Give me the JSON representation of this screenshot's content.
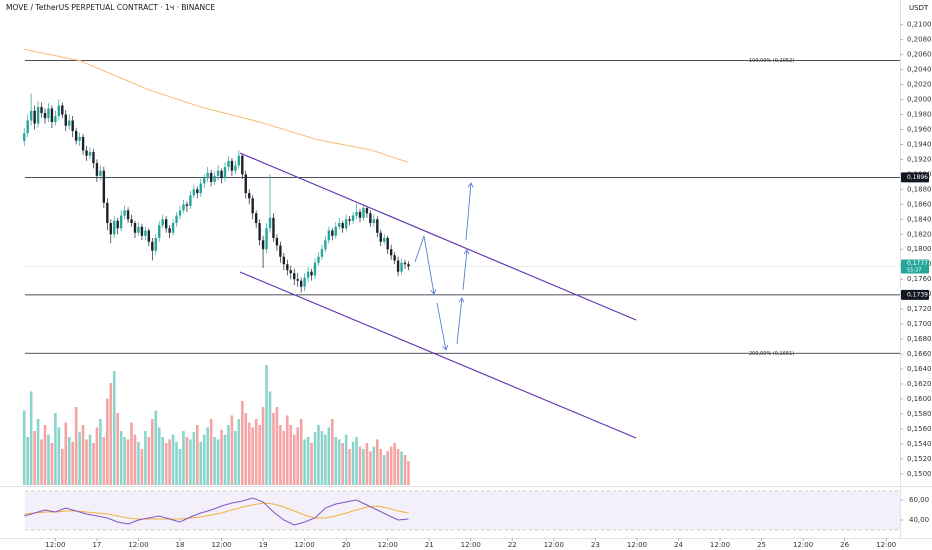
{
  "chart_data": {
    "type": "candlestick",
    "title": "MOVE / TetherUS PERPETUAL CONTRACT · 1ч · BINANCE",
    "y_unit": "USDT",
    "up_color": "#26a69a",
    "down_color": "#1e222d",
    "volume_up_color": "#8ad4cc",
    "volume_down_color": "#f5a3a3",
    "ma_color": "#f8bc7a",
    "rsi_color": "#7e57c2",
    "rsi_ma_color": "#f5b041",
    "xlim": [
      -4,
      256
    ],
    "xticks": [
      {
        "value": 12,
        "label": "12:00"
      },
      {
        "value": 24,
        "label": "17"
      },
      {
        "value": 36,
        "label": "12:00"
      },
      {
        "value": 48,
        "label": "18"
      },
      {
        "value": 60,
        "label": "12:00"
      },
      {
        "value": 72,
        "label": "19"
      },
      {
        "value": 84,
        "label": "12:00"
      },
      {
        "value": 96,
        "label": "20"
      },
      {
        "value": 108,
        "label": "12:00"
      },
      {
        "value": 120,
        "label": "21"
      },
      {
        "value": 132,
        "label": "12:00"
      },
      {
        "value": 144,
        "label": "22"
      },
      {
        "value": 156,
        "label": "12:00"
      },
      {
        "value": 168,
        "label": "23"
      },
      {
        "value": 180,
        "label": "12:00"
      },
      {
        "value": 192,
        "label": "24"
      },
      {
        "value": 204,
        "label": "12:00"
      },
      {
        "value": 216,
        "label": "25"
      },
      {
        "value": 228,
        "label": "12:00"
      },
      {
        "value": 240,
        "label": "26"
      },
      {
        "value": 252,
        "label": "12:00"
      }
    ],
    "ylim": [
      0.1485,
      0.2133
    ],
    "yticks": [
      {
        "value": 0.21,
        "label": "0,2100"
      },
      {
        "value": 0.208,
        "label": "0,2080"
      },
      {
        "value": 0.206,
        "label": "0,2060"
      },
      {
        "value": 0.204,
        "label": "0,2040"
      },
      {
        "value": 0.202,
        "label": "0,2020"
      },
      {
        "value": 0.2,
        "label": "0,2000"
      },
      {
        "value": 0.198,
        "label": "0,1980"
      },
      {
        "value": 0.196,
        "label": "0,1960"
      },
      {
        "value": 0.194,
        "label": "0,1940"
      },
      {
        "value": 0.192,
        "label": "0,1920"
      },
      {
        "value": 0.19,
        "label": "0,1900"
      },
      {
        "value": 0.188,
        "label": "0,1880"
      },
      {
        "value": 0.186,
        "label": "0,1860"
      },
      {
        "value": 0.184,
        "label": "0,1840"
      },
      {
        "value": 0.182,
        "label": "0,1820"
      },
      {
        "value": 0.18,
        "label": "0,1800"
      },
      {
        "value": 0.178,
        "label": "0,1780"
      },
      {
        "value": 0.176,
        "label": "0,1760"
      },
      {
        "value": 0.174,
        "label": "0,1740"
      },
      {
        "value": 0.172,
        "label": "0,1720"
      },
      {
        "value": 0.17,
        "label": "0,1700"
      },
      {
        "value": 0.168,
        "label": "0,1680"
      },
      {
        "value": 0.166,
        "label": "0,1660"
      },
      {
        "value": 0.164,
        "label": "0,1640"
      },
      {
        "value": 0.162,
        "label": "0,1620"
      },
      {
        "value": 0.16,
        "label": "0,1600"
      },
      {
        "value": 0.158,
        "label": "0,1580"
      },
      {
        "value": 0.156,
        "label": "0,1560"
      },
      {
        "value": 0.154,
        "label": "0,1540"
      },
      {
        "value": 0.152,
        "label": "0,1520"
      },
      {
        "value": 0.15,
        "label": "0,1500"
      }
    ],
    "levels": [
      {
        "value": 0.2052,
        "label": "100,00% (0,2052)"
      },
      {
        "value": 0.1896,
        "label": "0,1896"
      },
      {
        "value": 0.1739,
        "label": "0,1739"
      },
      {
        "value": 0.1661,
        "label": "200,00% (0,1661)"
      }
    ],
    "last": {
      "value": 0.1777,
      "label": "0,1777",
      "countdown": "55:37"
    },
    "x": [
      3,
      4,
      5,
      6,
      7,
      8,
      9,
      10,
      11,
      12,
      13,
      14,
      15,
      16,
      17,
      18,
      19,
      20,
      21,
      22,
      23,
      24,
      25,
      26,
      27,
      28,
      29,
      30,
      31,
      32,
      33,
      34,
      35,
      36,
      37,
      38,
      39,
      40,
      41,
      42,
      43,
      44,
      45,
      46,
      47,
      48,
      49,
      50,
      51,
      52,
      53,
      54,
      55,
      56,
      57,
      58,
      59,
      60,
      61,
      62,
      63,
      64,
      65,
      66,
      67,
      68,
      69,
      70,
      71,
      72,
      73,
      74,
      75,
      76,
      77,
      78,
      79,
      80,
      81,
      82,
      83,
      84,
      85,
      86,
      87,
      88,
      89,
      90,
      91,
      92,
      93,
      94,
      95,
      96,
      97,
      98,
      99,
      100,
      101,
      102,
      103,
      104,
      105,
      106,
      107,
      108,
      109,
      110,
      111,
      112,
      113,
      114
    ],
    "ohlc": [
      [
        0.1945,
        0.1962,
        0.1938,
        0.1955
      ],
      [
        0.1955,
        0.198,
        0.195,
        0.1972
      ],
      [
        0.1972,
        0.2008,
        0.1965,
        0.1985
      ],
      [
        0.1985,
        0.1992,
        0.196,
        0.1968
      ],
      [
        0.1968,
        0.1998,
        0.1962,
        0.199
      ],
      [
        0.199,
        0.1996,
        0.1976,
        0.1982
      ],
      [
        0.1982,
        0.1988,
        0.1968,
        0.1975
      ],
      [
        0.1975,
        0.1995,
        0.197,
        0.1988
      ],
      [
        0.1988,
        0.1992,
        0.1962,
        0.197
      ],
      [
        0.197,
        0.1985,
        0.1965,
        0.1978
      ],
      [
        0.1978,
        0.2,
        0.1972,
        0.1992
      ],
      [
        0.1992,
        0.1996,
        0.1975,
        0.198
      ],
      [
        0.198,
        0.1986,
        0.1958,
        0.1965
      ],
      [
        0.1965,
        0.198,
        0.196,
        0.1972
      ],
      [
        0.1972,
        0.1978,
        0.195,
        0.1958
      ],
      [
        0.1958,
        0.1962,
        0.194,
        0.1945
      ],
      [
        0.1945,
        0.1956,
        0.1938,
        0.195
      ],
      [
        0.195,
        0.1954,
        0.1926,
        0.1932
      ],
      [
        0.1932,
        0.1938,
        0.1918,
        0.1925
      ],
      [
        0.1925,
        0.1936,
        0.192,
        0.193
      ],
      [
        0.193,
        0.1934,
        0.1908,
        0.1915
      ],
      [
        0.1915,
        0.192,
        0.189,
        0.1898
      ],
      [
        0.1898,
        0.1912,
        0.1892,
        0.1905
      ],
      [
        0.1905,
        0.191,
        0.1855,
        0.1862
      ],
      [
        0.1862,
        0.1868,
        0.1825,
        0.1835
      ],
      [
        0.1835,
        0.184,
        0.1808,
        0.182
      ],
      [
        0.182,
        0.1845,
        0.1815,
        0.1838
      ],
      [
        0.1838,
        0.1842,
        0.182,
        0.1828
      ],
      [
        0.1828,
        0.1852,
        0.1824,
        0.1845
      ],
      [
        0.1845,
        0.1858,
        0.184,
        0.1852
      ],
      [
        0.1852,
        0.1856,
        0.1835,
        0.184
      ],
      [
        0.184,
        0.1846,
        0.183,
        0.1835
      ],
      [
        0.1835,
        0.1838,
        0.1815,
        0.1822
      ],
      [
        0.1822,
        0.1836,
        0.1818,
        0.183
      ],
      [
        0.183,
        0.1834,
        0.1812,
        0.1818
      ],
      [
        0.1818,
        0.183,
        0.1812,
        0.1825
      ],
      [
        0.1825,
        0.1828,
        0.1804,
        0.181
      ],
      [
        0.181,
        0.1815,
        0.1785,
        0.1798
      ],
      [
        0.1798,
        0.182,
        0.1792,
        0.1815
      ],
      [
        0.1815,
        0.1838,
        0.181,
        0.1832
      ],
      [
        0.1832,
        0.1846,
        0.1828,
        0.184
      ],
      [
        0.184,
        0.1844,
        0.1822,
        0.1828
      ],
      [
        0.1828,
        0.1832,
        0.1815,
        0.1822
      ],
      [
        0.1822,
        0.184,
        0.1818,
        0.1835
      ],
      [
        0.1835,
        0.185,
        0.183,
        0.1845
      ],
      [
        0.1845,
        0.1858,
        0.184,
        0.1852
      ],
      [
        0.1852,
        0.1866,
        0.1848,
        0.186
      ],
      [
        0.186,
        0.1864,
        0.185,
        0.1858
      ],
      [
        0.1858,
        0.1878,
        0.1854,
        0.1872
      ],
      [
        0.1872,
        0.1886,
        0.1868,
        0.188
      ],
      [
        0.188,
        0.1884,
        0.1868,
        0.1875
      ],
      [
        0.1875,
        0.1894,
        0.187,
        0.1888
      ],
      [
        0.1888,
        0.19,
        0.1882,
        0.1895
      ],
      [
        0.1895,
        0.191,
        0.189,
        0.1902
      ],
      [
        0.1902,
        0.1906,
        0.1884,
        0.189
      ],
      [
        0.189,
        0.1904,
        0.1886,
        0.1898
      ],
      [
        0.1898,
        0.1912,
        0.1892,
        0.1905
      ],
      [
        0.1905,
        0.1908,
        0.1888,
        0.1895
      ],
      [
        0.1895,
        0.1916,
        0.189,
        0.191
      ],
      [
        0.191,
        0.1924,
        0.1905,
        0.1918
      ],
      [
        0.1918,
        0.1922,
        0.1898,
        0.1905
      ],
      [
        0.1905,
        0.1918,
        0.19,
        0.1912
      ],
      [
        0.1912,
        0.1932,
        0.1908,
        0.1925
      ],
      [
        0.1925,
        0.1928,
        0.1894,
        0.19
      ],
      [
        0.19,
        0.1905,
        0.1868,
        0.1875
      ],
      [
        0.1875,
        0.188,
        0.186,
        0.1868
      ],
      [
        0.1868,
        0.1872,
        0.184,
        0.1848
      ],
      [
        0.1848,
        0.1852,
        0.1828,
        0.1835
      ],
      [
        0.1835,
        0.184,
        0.1805,
        0.1812
      ],
      [
        0.1812,
        0.1818,
        0.1775,
        0.18
      ],
      [
        0.18,
        0.1835,
        0.1795,
        0.1828
      ],
      [
        0.1828,
        0.19,
        0.1822,
        0.1842
      ],
      [
        0.1842,
        0.1848,
        0.181,
        0.1815
      ],
      [
        0.1815,
        0.182,
        0.1798,
        0.1805
      ],
      [
        0.1805,
        0.181,
        0.1782,
        0.179
      ],
      [
        0.179,
        0.1795,
        0.1772,
        0.178
      ],
      [
        0.178,
        0.1786,
        0.1765,
        0.1772
      ],
      [
        0.1772,
        0.1778,
        0.176,
        0.1768
      ],
      [
        0.1768,
        0.1774,
        0.1752,
        0.176
      ],
      [
        0.176,
        0.1768,
        0.175,
        0.1758
      ],
      [
        0.1758,
        0.1762,
        0.1742,
        0.175
      ],
      [
        0.175,
        0.1768,
        0.1744,
        0.1762
      ],
      [
        0.1762,
        0.1776,
        0.1756,
        0.177
      ],
      [
        0.177,
        0.1774,
        0.1758,
        0.1765
      ],
      [
        0.1765,
        0.1788,
        0.176,
        0.1782
      ],
      [
        0.1782,
        0.1796,
        0.1778,
        0.179
      ],
      [
        0.179,
        0.1806,
        0.1786,
        0.18
      ],
      [
        0.18,
        0.1818,
        0.1796,
        0.1812
      ],
      [
        0.1812,
        0.183,
        0.1808,
        0.1825
      ],
      [
        0.1825,
        0.1828,
        0.1812,
        0.1818
      ],
      [
        0.1818,
        0.1836,
        0.1814,
        0.183
      ],
      [
        0.183,
        0.1842,
        0.1826,
        0.1835
      ],
      [
        0.1835,
        0.1838,
        0.1822,
        0.1828
      ],
      [
        0.1828,
        0.1846,
        0.1824,
        0.184
      ],
      [
        0.184,
        0.1844,
        0.1832,
        0.1838
      ],
      [
        0.1838,
        0.185,
        0.1834,
        0.1845
      ],
      [
        0.1845,
        0.1862,
        0.184,
        0.185
      ],
      [
        0.185,
        0.1854,
        0.1836,
        0.1842
      ],
      [
        0.1842,
        0.186,
        0.1838,
        0.1855
      ],
      [
        0.1855,
        0.1858,
        0.1842,
        0.1848
      ],
      [
        0.1848,
        0.1852,
        0.183,
        0.1835
      ],
      [
        0.1835,
        0.1846,
        0.183,
        0.184
      ],
      [
        0.184,
        0.1844,
        0.1816,
        0.1822
      ],
      [
        0.1822,
        0.1826,
        0.1804,
        0.181
      ],
      [
        0.181,
        0.182,
        0.1806,
        0.1815
      ],
      [
        0.1815,
        0.1818,
        0.1794,
        0.18
      ],
      [
        0.18,
        0.1806,
        0.1786,
        0.1792
      ],
      [
        0.1792,
        0.1796,
        0.178,
        0.1785
      ],
      [
        0.1785,
        0.179,
        0.1764,
        0.177
      ],
      [
        0.177,
        0.1788,
        0.1766,
        0.1782
      ],
      [
        0.1782,
        0.1786,
        0.1774,
        0.178
      ],
      [
        0.178,
        0.1784,
        0.1772,
        0.1777
      ]
    ],
    "volume_lim": [
      0,
      100
    ],
    "volume": [
      62,
      40,
      78,
      45,
      55,
      38,
      50,
      42,
      35,
      60,
      48,
      30,
      52,
      40,
      36,
      65,
      44,
      50,
      38,
      42,
      35,
      48,
      55,
      40,
      72,
      85,
      95,
      60,
      45,
      40,
      38,
      52,
      42,
      36,
      30,
      45,
      40,
      55,
      62,
      48,
      40,
      35,
      38,
      42,
      36,
      30,
      45,
      40,
      38,
      44,
      50,
      36,
      42,
      48,
      55,
      40,
      38,
      46,
      42,
      50,
      58,
      45,
      55,
      70,
      60,
      52,
      48,
      55,
      50,
      65,
      100,
      78,
      60,
      65,
      50,
      45,
      58,
      50,
      42,
      48,
      55,
      38,
      40,
      35,
      44,
      50,
      45,
      42,
      48,
      55,
      40,
      38,
      35,
      42,
      30,
      36,
      40,
      32,
      30,
      35,
      28,
      32,
      38,
      30,
      25,
      28,
      32,
      35,
      30,
      28,
      25,
      20
    ],
    "ma": {
      "x": [
        3,
        19,
        39,
        54,
        71,
        88,
        103,
        114
      ],
      "values": [
        0.2067,
        0.2052,
        0.2013,
        0.199,
        0.197,
        0.1946,
        0.1933,
        0.1916
      ]
    },
    "rsi_lim": [
      23,
      73
    ],
    "rsi_ticks": [
      {
        "value": 60,
        "label": "60,00"
      },
      {
        "value": 40,
        "label": "40,00"
      }
    ],
    "rsi": {
      "x": [
        3,
        6,
        9,
        12,
        15,
        18,
        21,
        24,
        27,
        30,
        33,
        36,
        39,
        42,
        45,
        48,
        51,
        54,
        57,
        60,
        63,
        66,
        69,
        72,
        75,
        78,
        81,
        84,
        87,
        90,
        93,
        96,
        99,
        102,
        105,
        108,
        111,
        114
      ],
      "values": [
        44,
        47,
        50,
        48,
        52,
        49,
        46,
        44,
        42,
        38,
        36,
        40,
        42,
        44,
        41,
        38,
        43,
        47,
        50,
        54,
        57,
        59,
        62,
        58,
        48,
        40,
        35,
        38,
        42,
        52,
        56,
        58,
        60,
        55,
        50,
        45,
        40,
        41
      ],
      "ma": [
        46,
        47,
        48,
        48,
        49,
        49,
        48,
        47,
        46,
        44,
        42,
        41,
        41,
        41,
        41,
        41,
        42,
        43,
        45,
        47,
        50,
        53,
        55,
        57,
        56,
        53,
        49,
        45,
        42,
        42,
        44,
        47,
        50,
        53,
        54,
        52,
        49,
        47
      ]
    }
  }
}
